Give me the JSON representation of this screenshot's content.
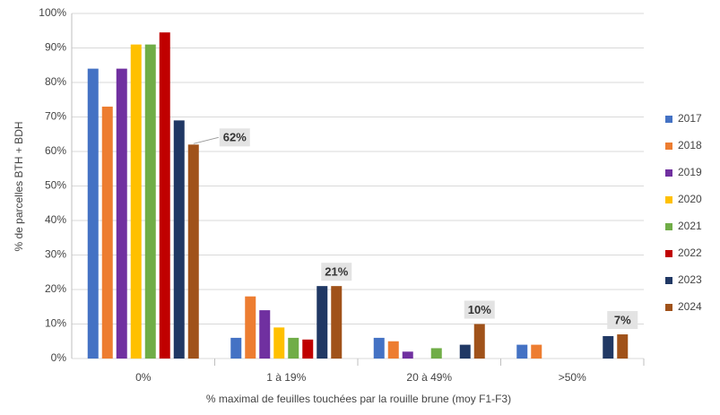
{
  "chart_data": {
    "type": "bar",
    "x_label": "% maximal de feuilles touchées par la rouille brune (moy F1-F3)",
    "y_label": "% de parcelles BTH + BDH",
    "categories": [
      "0%",
      "1 à 19%",
      "20 à 49%",
      ">50%"
    ],
    "series": [
      {
        "name": "2017",
        "color": "#4472c4",
        "values": [
          84,
          6,
          6,
          4
        ]
      },
      {
        "name": "2018",
        "color": "#ed7d31",
        "values": [
          73,
          18,
          5,
          4
        ]
      },
      {
        "name": "2019",
        "color": "#7030a0",
        "values": [
          84,
          14,
          2,
          0
        ]
      },
      {
        "name": "2020",
        "color": "#ffc000",
        "values": [
          91,
          9,
          0,
          0
        ]
      },
      {
        "name": "2021",
        "color": "#70ad47",
        "values": [
          91,
          6,
          3,
          0
        ]
      },
      {
        "name": "2022",
        "color": "#c00000",
        "values": [
          94.5,
          5.5,
          0,
          0
        ]
      },
      {
        "name": "2023",
        "color": "#203864",
        "values": [
          69,
          21,
          4,
          6.5
        ]
      },
      {
        "name": "2024",
        "color": "#a0521a",
        "values": [
          62,
          21,
          10,
          7
        ],
        "value_labels": [
          "62%",
          "21%",
          "10%",
          "7%"
        ]
      }
    ],
    "ylim": [
      0,
      100
    ],
    "yticks": [
      {
        "value": 0,
        "label": "0%"
      },
      {
        "value": 10,
        "label": "10%"
      },
      {
        "value": 20,
        "label": "20%"
      },
      {
        "value": 30,
        "label": "30%"
      },
      {
        "value": 40,
        "label": "40%"
      },
      {
        "value": 50,
        "label": "50%"
      },
      {
        "value": 60,
        "label": "60%"
      },
      {
        "value": 70,
        "label": "70%"
      },
      {
        "value": 80,
        "label": "80%"
      },
      {
        "value": 90,
        "label": "90%"
      },
      {
        "value": 100,
        "label": "100%"
      }
    ],
    "grid": true,
    "legend": "right"
  }
}
